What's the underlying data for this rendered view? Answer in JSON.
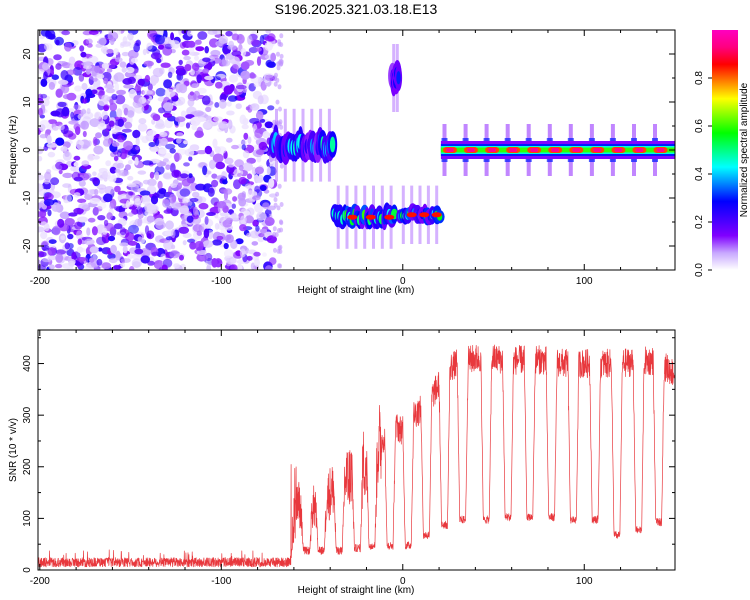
{
  "figure_title": "S196.2025.321.03.18.E13",
  "chart_data": [
    {
      "type": "heatmap",
      "title": "S196.2025.321.03.18.E13",
      "xlabel": "Height of straight line (km)",
      "ylabel": "Frequency (Hz)",
      "xlim": [
        -201,
        150
      ],
      "ylim": [
        -25,
        25
      ],
      "x_ticks": [
        -200,
        -100,
        0,
        100
      ],
      "y_ticks": [
        -20,
        -10,
        0,
        10,
        20
      ],
      "colorbar": {
        "label": "Normalized spectral amplitude",
        "range": [
          0,
          1
        ],
        "ticks": [
          0.0,
          0.2,
          0.4,
          0.6,
          0.8
        ],
        "colormap": [
          "#ffffff",
          "#c8a8ff",
          "#8000ff",
          "#4000ff",
          "#0000ff",
          "#0080ff",
          "#00ffff",
          "#00ff80",
          "#00ff00",
          "#80ff00",
          "#ffff00",
          "#ff8000",
          "#ff0000",
          "#ff0080",
          "#ff00c0"
        ]
      },
      "regions": [
        {
          "name": "noise",
          "x_range": [
            -201,
            -71
          ],
          "f_range": [
            -25,
            25
          ],
          "amplitude": 0.25
        },
        {
          "name": "signal-fragment",
          "x_range": [
            -72,
            -38
          ],
          "f_range": [
            -2,
            4
          ],
          "center_hz": 1,
          "amplitude": 0.45
        },
        {
          "name": "signal-fragment",
          "x_range": [
            -38,
            -4
          ],
          "f_range": [
            -16,
            -12
          ],
          "center_hz": -14,
          "amplitude": 0.55
        },
        {
          "name": "spot",
          "x_range": [
            -6,
            -2
          ],
          "f_range": [
            12,
            17
          ],
          "center_hz": 15,
          "amplitude": 0.3
        },
        {
          "name": "signal-fragment",
          "x_range": [
            -2,
            21
          ],
          "f_range": [
            -15,
            -12
          ],
          "center_hz": -13.5,
          "amplitude": 0.55
        },
        {
          "name": "carrier-line",
          "x_range": [
            21,
            150
          ],
          "center_hz": 0,
          "amplitude": 0.95
        }
      ]
    },
    {
      "type": "line",
      "xlabel": "Height of straight line (km)",
      "ylabel": "SNR (10 * v/v)",
      "xlim": [
        -201,
        150
      ],
      "ylim": [
        0,
        465
      ],
      "x_ticks": [
        -200,
        -100,
        0,
        100
      ],
      "y_ticks": [
        0,
        100,
        200,
        300,
        400
      ],
      "color": "#e8383d",
      "series": [
        {
          "name": "SNR",
          "x": [
            -201,
            -180,
            -160,
            -140,
            -120,
            -100,
            -80,
            -62,
            -58,
            -55,
            -50,
            -45,
            -40,
            -35,
            -30,
            -25,
            -20,
            -15,
            -10,
            -5,
            0,
            5,
            10,
            15,
            20,
            25,
            30,
            35,
            40,
            50,
            60,
            70,
            80,
            90,
            100,
            110,
            120,
            130,
            140,
            150
          ],
          "values": [
            15,
            15,
            16,
            15,
            16,
            15,
            16,
            20,
            140,
            100,
            120,
            130,
            150,
            170,
            180,
            200,
            210,
            230,
            260,
            280,
            270,
            300,
            310,
            330,
            360,
            390,
            400,
            405,
            410,
            410,
            405,
            410,
            405,
            400,
            400,
            400,
            400,
            405,
            405,
            380
          ]
        }
      ],
      "dropouts": [
        {
          "x": -53,
          "value": 30
        },
        {
          "x": -45,
          "value": 30
        },
        {
          "x": -35,
          "value": 30
        },
        {
          "x": -25,
          "value": 35
        },
        {
          "x": -17,
          "value": 40
        },
        {
          "x": -7,
          "value": 40
        },
        {
          "x": 3,
          "value": 40
        },
        {
          "x": 13,
          "value": 60
        },
        {
          "x": 23,
          "value": 80
        },
        {
          "x": 33,
          "value": 90
        },
        {
          "x": 46,
          "value": 90
        },
        {
          "x": 58,
          "value": 95
        },
        {
          "x": 70,
          "value": 95
        },
        {
          "x": 82,
          "value": 95
        },
        {
          "x": 94,
          "value": 90
        },
        {
          "x": 106,
          "value": 90
        },
        {
          "x": 118,
          "value": 60
        },
        {
          "x": 130,
          "value": 70
        },
        {
          "x": 141,
          "value": 85
        }
      ]
    }
  ]
}
